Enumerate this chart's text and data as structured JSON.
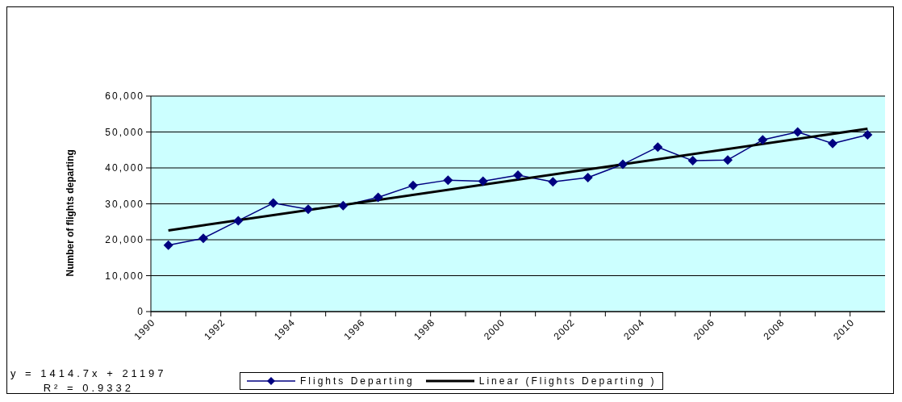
{
  "chart_data": {
    "type": "line",
    "ylabel": "Number of flights departing",
    "x": [
      1990.5,
      1991.5,
      1992.5,
      1993.5,
      1994.5,
      1995.5,
      1996.5,
      1997.5,
      1998.5,
      1999.5,
      2000.5,
      2001.5,
      2002.5,
      2003.5,
      2004.5,
      2005.5,
      2006.5,
      2007.5,
      2008.5,
      2009.5,
      2010.5
    ],
    "series": [
      {
        "name": "Flights Departing",
        "color": "#000080",
        "marker": "diamond",
        "values": [
          18500,
          20400,
          25300,
          30200,
          28500,
          29500,
          31800,
          35100,
          36600,
          36300,
          38000,
          36100,
          37300,
          41000,
          45800,
          42000,
          42200,
          47800,
          50000,
          46800,
          49200
        ]
      },
      {
        "name": "Linear (Flights Departing )",
        "type": "line",
        "color": "#000000",
        "marker": "none",
        "x": [
          1990.5,
          2010.5
        ],
        "values": [
          22600,
          50900
        ]
      }
    ],
    "xlim": [
      1990,
      2011
    ],
    "xticks": [
      1990,
      {
        "value": 1991,
        "label": null
      },
      1992,
      {
        "value": 1993,
        "label": null
      },
      1994,
      {
        "value": 1995,
        "label": null
      },
      1996,
      {
        "value": 1997,
        "label": null
      },
      1998,
      {
        "value": 1999,
        "label": null
      },
      2000,
      {
        "value": 2001,
        "label": null
      },
      2002,
      {
        "value": 2003,
        "label": null
      },
      2004,
      {
        "value": 2005,
        "label": null
      },
      2006,
      {
        "value": 2007,
        "label": null
      },
      2008,
      {
        "value": 2009,
        "label": null
      },
      2010
    ],
    "ylim": [
      0,
      60000
    ],
    "yticks": [
      0,
      {
        "value": 10000,
        "label": "10,000"
      },
      {
        "value": 20000,
        "label": "20,000"
      },
      {
        "value": 30000,
        "label": "30,000"
      },
      {
        "value": 40000,
        "label": "40,000"
      },
      {
        "value": 50000,
        "label": "50,000"
      },
      {
        "value": 60000,
        "label": "60,000"
      }
    ],
    "grid": "y",
    "legend": "bottom",
    "line_style": "solid",
    "annotations": [
      "y = 1414.7x + 21197",
      "R² = 0.9332"
    ]
  }
}
